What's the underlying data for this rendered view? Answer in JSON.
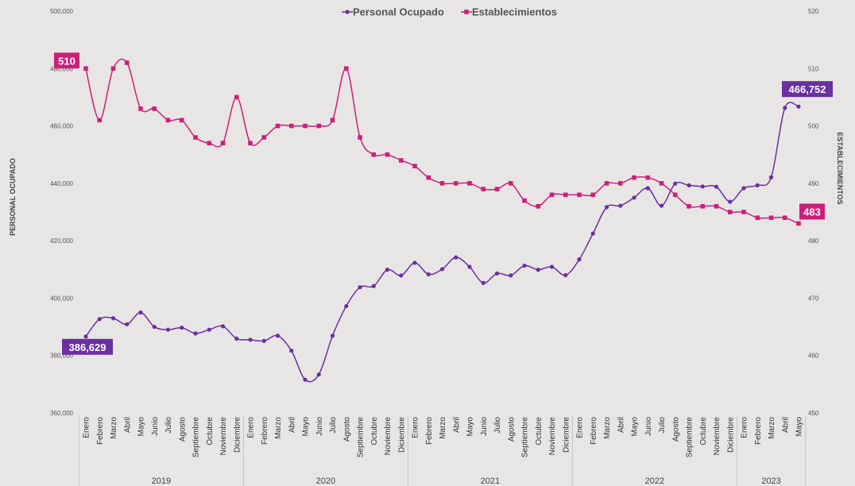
{
  "chart_data": {
    "type": "line",
    "y_left": {
      "label": "PERSONAL OCUPADO",
      "ylim": [
        360000,
        500000
      ],
      "ticks": [
        "360,000",
        "380,000",
        "400,000",
        "420,000",
        "440,000",
        "460,000",
        "480,000",
        "500,000"
      ]
    },
    "y_right": {
      "label": "ESTABLECIMIENTOS",
      "ylim": [
        450,
        520
      ],
      "ticks": [
        "450",
        "460",
        "470",
        "480",
        "490",
        "500",
        "510",
        "520"
      ]
    },
    "years": [
      {
        "label": "2019",
        "months": [
          "Enero",
          "Febrero",
          "Marzo",
          "Abril",
          "Mayo",
          "Junio",
          "Julio",
          "Agosto",
          "Septiembre",
          "Octubre",
          "Noviembre",
          "Diciembre"
        ]
      },
      {
        "label": "2020",
        "months": [
          "Enero",
          "Febrero",
          "Marzo",
          "Abril",
          "Mayo",
          "Junio",
          "Julio",
          "Agosto",
          "Septiembre",
          "Octubre",
          "Noviembre",
          "Diciembre"
        ]
      },
      {
        "label": "2021",
        "months": [
          "Enero",
          "Febrero",
          "Marzo",
          "Abril",
          "Mayo",
          "Junio",
          "Julio",
          "Agosto",
          "Septiembre",
          "Octubre",
          "Noviembre",
          "Diciembre"
        ]
      },
      {
        "label": "2022",
        "months": [
          "Enero",
          "Febrero",
          "Marzo",
          "Abril",
          "Mayo",
          "Junio",
          "Julio",
          "Agosto",
          "Septiembre",
          "Octubre",
          "Noviembre",
          "Diciembre"
        ]
      },
      {
        "label": "2023",
        "months": [
          "Enero",
          "Febrero",
          "Marzo",
          "Abril",
          "Mayo"
        ]
      }
    ],
    "series": [
      {
        "name": "Personal Ocupado",
        "axis": "left",
        "color": "#6a2fa0",
        "marker": "circle",
        "values": [
          386629,
          392700,
          393000,
          390900,
          395000,
          390000,
          389000,
          389700,
          387700,
          389000,
          390200,
          385900,
          385500,
          385100,
          386900,
          381700,
          371600,
          373400,
          386900,
          397200,
          403800,
          404200,
          409900,
          407900,
          412300,
          408300,
          410100,
          414200,
          410900,
          405300,
          408600,
          407900,
          411300,
          409900,
          410900,
          408000,
          413500,
          422500,
          431700,
          432200,
          435000,
          438300,
          432200,
          439900,
          439300,
          438900,
          438800,
          433600,
          438300,
          439300,
          442100,
          466300,
          466752
        ],
        "start_label": "386,629",
        "end_label": "466,752"
      },
      {
        "name": "Establecimientos",
        "axis": "right",
        "color": "#cc1f7a",
        "marker": "square",
        "values": [
          510,
          501,
          510,
          511,
          503,
          503,
          501,
          501,
          498,
          497,
          497,
          505,
          497,
          498,
          500,
          500,
          500,
          500,
          501,
          510,
          498,
          495,
          495,
          494,
          493,
          491,
          490,
          490,
          490,
          489,
          489,
          490,
          487,
          486,
          488,
          488,
          488,
          488,
          490,
          490,
          491,
          491,
          490,
          488,
          486,
          486,
          486,
          485,
          485,
          484,
          484,
          484,
          483
        ],
        "start_label": "510",
        "end_label": "483"
      }
    ]
  }
}
